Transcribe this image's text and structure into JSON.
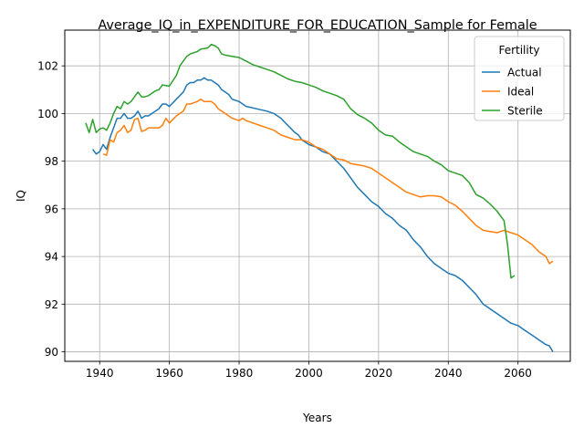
{
  "chart_data": {
    "type": "line",
    "title": "Average_IQ_in_EXPENDITURE_FOR_EDUCATION_Sample for Female",
    "xlabel": "Years",
    "ylabel": "IQ",
    "xlim": [
      1930,
      2075
    ],
    "ylim": [
      89.6,
      103.5
    ],
    "xticks": [
      1940,
      1960,
      1980,
      2000,
      2020,
      2040,
      2060
    ],
    "yticks": [
      90,
      92,
      94,
      96,
      98,
      100,
      102
    ],
    "grid": true,
    "legend": {
      "title": "Fertility",
      "position": "top-right"
    },
    "series": [
      {
        "name": "Actual",
        "color": "#1f77b4",
        "points": [
          [
            1938,
            98.5
          ],
          [
            1939,
            98.3
          ],
          [
            1940,
            98.4
          ],
          [
            1941,
            98.7
          ],
          [
            1942,
            98.5
          ],
          [
            1943,
            99.0
          ],
          [
            1944,
            99.4
          ],
          [
            1945,
            99.8
          ],
          [
            1946,
            99.8
          ],
          [
            1947,
            100.0
          ],
          [
            1948,
            99.8
          ],
          [
            1949,
            99.8
          ],
          [
            1950,
            99.9
          ],
          [
            1951,
            100.1
          ],
          [
            1952,
            99.8
          ],
          [
            1953,
            99.9
          ],
          [
            1954,
            99.9
          ],
          [
            1956,
            100.1
          ],
          [
            1957,
            100.2
          ],
          [
            1958,
            100.4
          ],
          [
            1959,
            100.4
          ],
          [
            1960,
            100.3
          ],
          [
            1962,
            100.6
          ],
          [
            1964,
            100.9
          ],
          [
            1965,
            101.2
          ],
          [
            1966,
            101.3
          ],
          [
            1967,
            101.3
          ],
          [
            1968,
            101.4
          ],
          [
            1969,
            101.4
          ],
          [
            1970,
            101.5
          ],
          [
            1971,
            101.4
          ],
          [
            1972,
            101.4
          ],
          [
            1973,
            101.3
          ],
          [
            1974,
            101.2
          ],
          [
            1975,
            101.0
          ],
          [
            1976,
            100.9
          ],
          [
            1977,
            100.8
          ],
          [
            1978,
            100.6
          ],
          [
            1980,
            100.5
          ],
          [
            1982,
            100.3
          ],
          [
            1985,
            100.2
          ],
          [
            1988,
            100.1
          ],
          [
            1990,
            100.0
          ],
          [
            1992,
            99.8
          ],
          [
            1994,
            99.5
          ],
          [
            1996,
            99.2
          ],
          [
            1997,
            99.1
          ],
          [
            1998,
            98.9
          ],
          [
            2000,
            98.7
          ],
          [
            2002,
            98.6
          ],
          [
            2004,
            98.4
          ],
          [
            2006,
            98.3
          ],
          [
            2008,
            98.0
          ],
          [
            2010,
            97.7
          ],
          [
            2012,
            97.3
          ],
          [
            2014,
            96.9
          ],
          [
            2016,
            96.6
          ],
          [
            2018,
            96.3
          ],
          [
            2020,
            96.1
          ],
          [
            2022,
            95.8
          ],
          [
            2024,
            95.6
          ],
          [
            2026,
            95.3
          ],
          [
            2028,
            95.1
          ],
          [
            2030,
            94.7
          ],
          [
            2032,
            94.4
          ],
          [
            2034,
            94.0
          ],
          [
            2036,
            93.7
          ],
          [
            2038,
            93.5
          ],
          [
            2040,
            93.3
          ],
          [
            2042,
            93.2
          ],
          [
            2044,
            93.0
          ],
          [
            2046,
            92.7
          ],
          [
            2048,
            92.4
          ],
          [
            2050,
            92.0
          ],
          [
            2052,
            91.8
          ],
          [
            2054,
            91.6
          ],
          [
            2056,
            91.4
          ],
          [
            2058,
            91.2
          ],
          [
            2060,
            91.1
          ],
          [
            2062,
            90.9
          ],
          [
            2064,
            90.7
          ],
          [
            2066,
            90.5
          ],
          [
            2068,
            90.3
          ],
          [
            2069,
            90.25
          ],
          [
            2070,
            90.0
          ]
        ]
      },
      {
        "name": "Ideal",
        "color": "#ff7f0e",
        "points": [
          [
            1941,
            98.3
          ],
          [
            1942,
            98.25
          ],
          [
            1943,
            98.9
          ],
          [
            1944,
            98.8
          ],
          [
            1945,
            99.2
          ],
          [
            1946,
            99.3
          ],
          [
            1947,
            99.5
          ],
          [
            1948,
            99.2
          ],
          [
            1949,
            99.3
          ],
          [
            1950,
            99.75
          ],
          [
            1951,
            99.8
          ],
          [
            1952,
            99.25
          ],
          [
            1953,
            99.3
          ],
          [
            1954,
            99.4
          ],
          [
            1956,
            99.4
          ],
          [
            1957,
            99.4
          ],
          [
            1958,
            99.5
          ],
          [
            1959,
            99.8
          ],
          [
            1960,
            99.6
          ],
          [
            1962,
            99.9
          ],
          [
            1964,
            100.1
          ],
          [
            1965,
            100.4
          ],
          [
            1966,
            100.4
          ],
          [
            1968,
            100.5
          ],
          [
            1969,
            100.6
          ],
          [
            1970,
            100.5
          ],
          [
            1972,
            100.5
          ],
          [
            1973,
            100.4
          ],
          [
            1974,
            100.2
          ],
          [
            1975,
            100.1
          ],
          [
            1976,
            100.0
          ],
          [
            1977,
            99.9
          ],
          [
            1978,
            99.8
          ],
          [
            1980,
            99.7
          ],
          [
            1981,
            99.8
          ],
          [
            1982,
            99.7
          ],
          [
            1984,
            99.6
          ],
          [
            1986,
            99.5
          ],
          [
            1988,
            99.4
          ],
          [
            1990,
            99.3
          ],
          [
            1992,
            99.1
          ],
          [
            1994,
            99.0
          ],
          [
            1996,
            98.9
          ],
          [
            1998,
            98.9
          ],
          [
            2000,
            98.8
          ],
          [
            2002,
            98.6
          ],
          [
            2004,
            98.5
          ],
          [
            2006,
            98.3
          ],
          [
            2008,
            98.1
          ],
          [
            2010,
            98.05
          ],
          [
            2012,
            97.9
          ],
          [
            2014,
            97.85
          ],
          [
            2016,
            97.8
          ],
          [
            2018,
            97.7
          ],
          [
            2020,
            97.5
          ],
          [
            2022,
            97.3
          ],
          [
            2024,
            97.1
          ],
          [
            2026,
            96.9
          ],
          [
            2028,
            96.7
          ],
          [
            2030,
            96.6
          ],
          [
            2032,
            96.5
          ],
          [
            2034,
            96.55
          ],
          [
            2036,
            96.55
          ],
          [
            2038,
            96.5
          ],
          [
            2040,
            96.3
          ],
          [
            2042,
            96.15
          ],
          [
            2044,
            95.9
          ],
          [
            2046,
            95.6
          ],
          [
            2048,
            95.3
          ],
          [
            2050,
            95.1
          ],
          [
            2052,
            95.05
          ],
          [
            2054,
            95.0
          ],
          [
            2056,
            95.1
          ],
          [
            2058,
            95.0
          ],
          [
            2060,
            94.9
          ],
          [
            2062,
            94.7
          ],
          [
            2064,
            94.5
          ],
          [
            2066,
            94.2
          ],
          [
            2068,
            94.0
          ],
          [
            2069,
            93.7
          ],
          [
            2070,
            93.8
          ]
        ]
      },
      {
        "name": "Sterile",
        "color": "#2ca02c",
        "points": [
          [
            1936,
            99.6
          ],
          [
            1937,
            99.2
          ],
          [
            1938,
            99.75
          ],
          [
            1939,
            99.2
          ],
          [
            1940,
            99.35
          ],
          [
            1941,
            99.4
          ],
          [
            1942,
            99.3
          ],
          [
            1943,
            99.6
          ],
          [
            1944,
            100.0
          ],
          [
            1945,
            100.3
          ],
          [
            1946,
            100.2
          ],
          [
            1947,
            100.5
          ],
          [
            1948,
            100.4
          ],
          [
            1949,
            100.5
          ],
          [
            1950,
            100.7
          ],
          [
            1951,
            100.9
          ],
          [
            1952,
            100.7
          ],
          [
            1953,
            100.7
          ],
          [
            1954,
            100.75
          ],
          [
            1956,
            100.95
          ],
          [
            1957,
            101.0
          ],
          [
            1958,
            101.2
          ],
          [
            1960,
            101.15
          ],
          [
            1962,
            101.6
          ],
          [
            1963,
            102.0
          ],
          [
            1964,
            102.2
          ],
          [
            1965,
            102.4
          ],
          [
            1966,
            102.5
          ],
          [
            1968,
            102.6
          ],
          [
            1969,
            102.7
          ],
          [
            1971,
            102.75
          ],
          [
            1972,
            102.9
          ],
          [
            1973,
            102.85
          ],
          [
            1974,
            102.75
          ],
          [
            1975,
            102.5
          ],
          [
            1976,
            102.45
          ],
          [
            1978,
            102.4
          ],
          [
            1980,
            102.35
          ],
          [
            1982,
            102.2
          ],
          [
            1984,
            102.05
          ],
          [
            1986,
            101.95
          ],
          [
            1988,
            101.85
          ],
          [
            1990,
            101.75
          ],
          [
            1992,
            101.6
          ],
          [
            1994,
            101.45
          ],
          [
            1996,
            101.35
          ],
          [
            1998,
            101.3
          ],
          [
            2000,
            101.2
          ],
          [
            2002,
            101.1
          ],
          [
            2004,
            100.95
          ],
          [
            2006,
            100.85
          ],
          [
            2008,
            100.75
          ],
          [
            2010,
            100.6
          ],
          [
            2012,
            100.2
          ],
          [
            2014,
            99.95
          ],
          [
            2016,
            99.8
          ],
          [
            2018,
            99.6
          ],
          [
            2020,
            99.3
          ],
          [
            2022,
            99.1
          ],
          [
            2024,
            99.05
          ],
          [
            2026,
            98.8
          ],
          [
            2028,
            98.6
          ],
          [
            2030,
            98.4
          ],
          [
            2032,
            98.3
          ],
          [
            2034,
            98.2
          ],
          [
            2036,
            98.0
          ],
          [
            2038,
            97.85
          ],
          [
            2040,
            97.6
          ],
          [
            2042,
            97.5
          ],
          [
            2044,
            97.4
          ],
          [
            2046,
            97.1
          ],
          [
            2048,
            96.6
          ],
          [
            2050,
            96.45
          ],
          [
            2052,
            96.2
          ],
          [
            2054,
            95.9
          ],
          [
            2056,
            95.5
          ],
          [
            2057,
            94.5
          ],
          [
            2058,
            93.1
          ],
          [
            2059,
            93.2
          ]
        ]
      }
    ]
  }
}
